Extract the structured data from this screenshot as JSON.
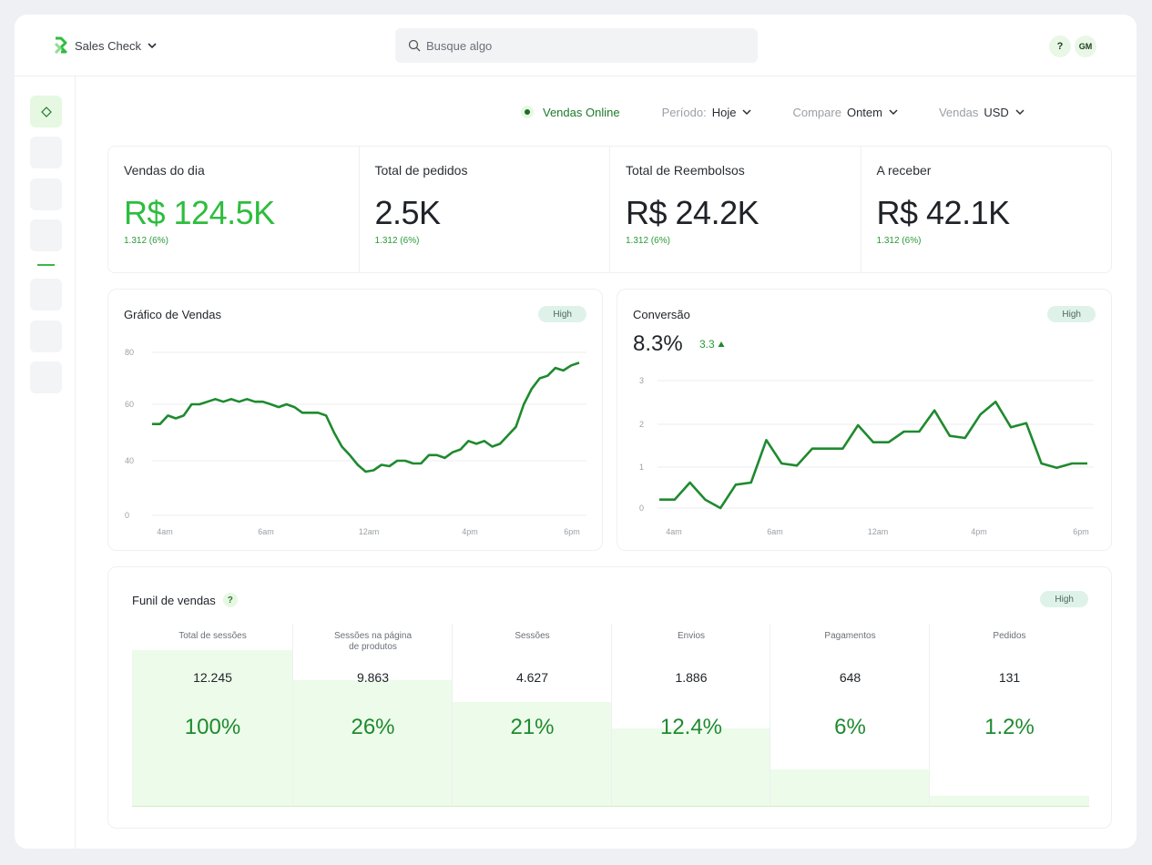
{
  "header": {
    "app_name": "Sales Check",
    "search_placeholder": "Busque algo",
    "help_label": "?",
    "avatar_initials": "GM"
  },
  "filters": {
    "online_label": "Vendas Online",
    "period_label": "Período:",
    "period_value": "Hoje",
    "compare_label": "Compare",
    "compare_value": "Ontem",
    "currency_label": "Vendas",
    "currency_value": "USD"
  },
  "kpis": [
    {
      "label": "Vendas do dia",
      "value": "R$ 124.5K",
      "sub": "1.312 (6%)"
    },
    {
      "label": "Total de pedidos",
      "value": "2.5K",
      "sub": "1.312 (6%)"
    },
    {
      "label": "Total de Reembolsos",
      "value": "R$ 24.2K",
      "sub": "1.312 (6%)"
    },
    {
      "label": "A receber",
      "value": "R$ 42.1K",
      "sub": "1.312 (6%)"
    }
  ],
  "sales_chart": {
    "title": "Gráfico de Vendas",
    "badge": "High"
  },
  "conversion": {
    "title": "Conversão",
    "badge": "High",
    "value": "8.3%",
    "delta": "3.3"
  },
  "funnel": {
    "title": "Funil de vendas",
    "help": "?",
    "badge": "High",
    "columns": [
      {
        "header": "Total de sessões",
        "count": "12.245",
        "pct": "100%",
        "fill": 1.0
      },
      {
        "header": "Sessões na página\nde produtos",
        "count": "9.863",
        "pct": "26%",
        "fill": 0.81
      },
      {
        "header": "Sessões",
        "count": "4.627",
        "pct": "21%",
        "fill": 0.67
      },
      {
        "header": "Envios",
        "count": "1.886",
        "pct": "12.4%",
        "fill": 0.5
      },
      {
        "header": "Pagamentos",
        "count": "648",
        "pct": "6%",
        "fill": 0.24
      },
      {
        "header": "Pedidos",
        "count": "131",
        "pct": "1.2%",
        "fill": 0.07
      }
    ]
  },
  "chart_data": [
    {
      "type": "line",
      "title": "Gráfico de Vendas",
      "x_ticks": [
        "4am",
        "6am",
        "12am",
        "4pm",
        "6pm"
      ],
      "y_ticks": [
        "0",
        "40",
        "60",
        "80"
      ],
      "ylim": [
        0,
        80
      ],
      "color": "#1f8a2f",
      "grid": true,
      "values": [
        53,
        53,
        56,
        55,
        56,
        60,
        60,
        61,
        62,
        61,
        62,
        61,
        62,
        61,
        61,
        60,
        59,
        60,
        59,
        57,
        57,
        57,
        56,
        50,
        45,
        42,
        37,
        32,
        33,
        37,
        36,
        40,
        40,
        38,
        38,
        42,
        42,
        41,
        43,
        44,
        47,
        46,
        47,
        45,
        46,
        49,
        52,
        60,
        66,
        70,
        71,
        74,
        73,
        75,
        76
      ]
    },
    {
      "type": "line",
      "title": "Conversão",
      "x_ticks": [
        "4am",
        "6am",
        "12am",
        "4pm",
        "6pm"
      ],
      "y_ticks": [
        "0",
        "1",
        "2",
        "3"
      ],
      "ylim": [
        0,
        3
      ],
      "color": "#1f8a2f",
      "grid": true,
      "values": [
        0.2,
        0.2,
        0.6,
        0.2,
        0.0,
        0.55,
        0.6,
        1.6,
        1.05,
        1.0,
        1.4,
        1.4,
        1.4,
        1.95,
        1.55,
        1.55,
        1.8,
        1.8,
        2.3,
        1.7,
        1.65,
        2.2,
        2.5,
        1.9,
        2.0,
        1.05,
        0.95,
        1.05,
        1.05
      ]
    }
  ]
}
